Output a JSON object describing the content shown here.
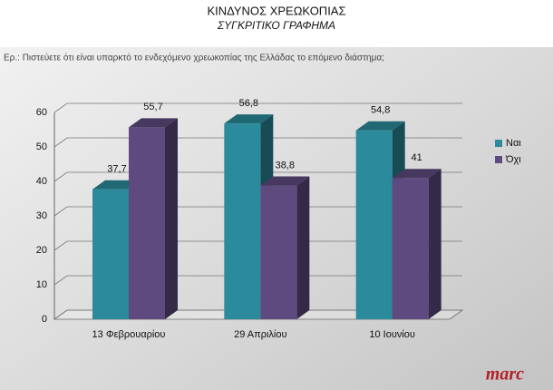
{
  "chart_data": {
    "type": "bar3d",
    "title": "ΚΙΝΔΥΝΟΣ ΧΡΕΩΚΟΠΙΑΣ",
    "subtitle": "ΣΥΓΚΡΙΤΙΚΟ ΓΡΑΦΗΜΑ",
    "question": "Ερ.: Πιστεύετε ότι είναι υπαρκτό το ενδεχόμενο χρεωκοπίας της Ελλάδας το επόμενο διάστημα;",
    "logo": "marc",
    "categories": [
      "13 Φεβρουαρίου",
      "29 Απριλίου",
      "10 Ιουνίου"
    ],
    "series": [
      {
        "name": "Ναι",
        "color": "#2b8a9b",
        "values": [
          37.7,
          56.8,
          54.8
        ],
        "value_labels": [
          "37,7",
          "56,8",
          "54,8"
        ]
      },
      {
        "name": "Όχι",
        "color": "#5f4a80",
        "values": [
          55.7,
          38.8,
          41
        ],
        "value_labels": [
          "55,7",
          "38,8",
          "41"
        ]
      }
    ],
    "ylim": [
      0,
      60
    ],
    "yticks": [
      0,
      10,
      20,
      30,
      40,
      50,
      60
    ],
    "grid": true,
    "legend": "right"
  }
}
